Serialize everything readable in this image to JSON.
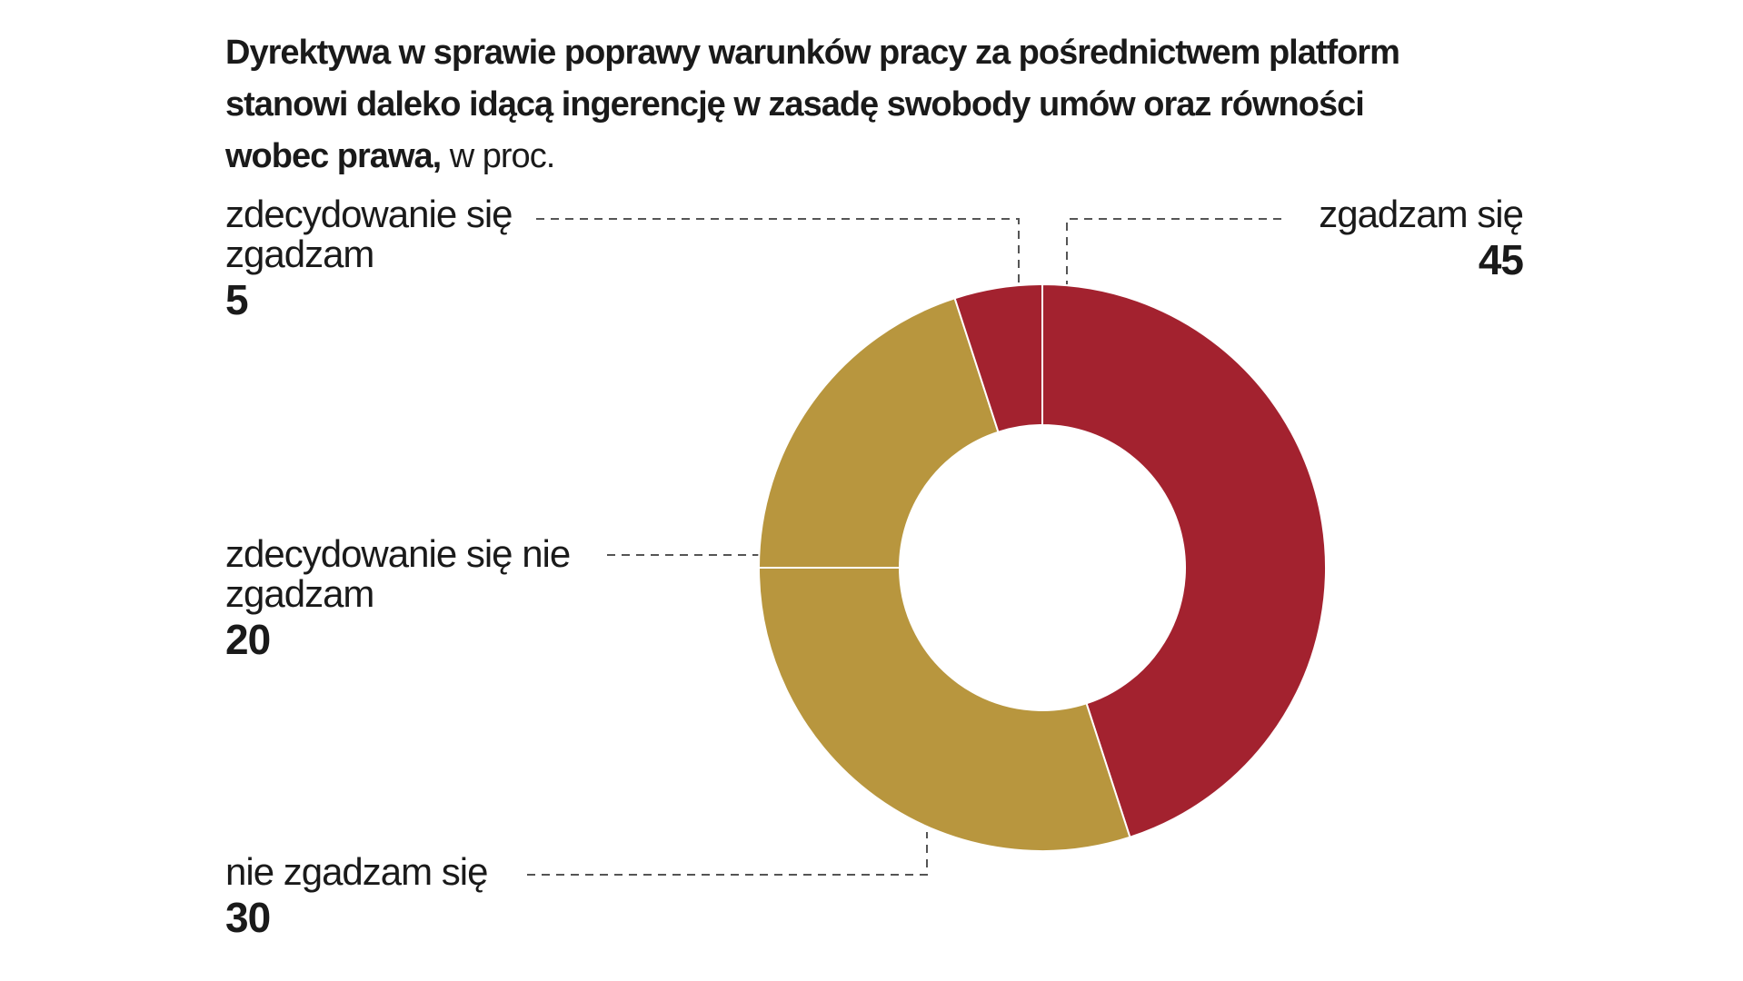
{
  "chart_data": {
    "type": "donut",
    "title": "Dyrektywa  w sprawie poprawy warunków pracy za pośrednictwem platform stanowi daleko idącą ingerencję w zasadę swobody umów oraz równości wobec prawa,",
    "subtitle": "w proc.",
    "categories": [
      "zgadzam się",
      "nie zgadzam się",
      "zdecydowanie się nie zgadzam",
      "zdecydowanie się zgadzam"
    ],
    "values": [
      45,
      30,
      20,
      5
    ],
    "colors": [
      "#a3222f",
      "#b8963e",
      "#b8963e",
      "#a3222f"
    ]
  }
}
